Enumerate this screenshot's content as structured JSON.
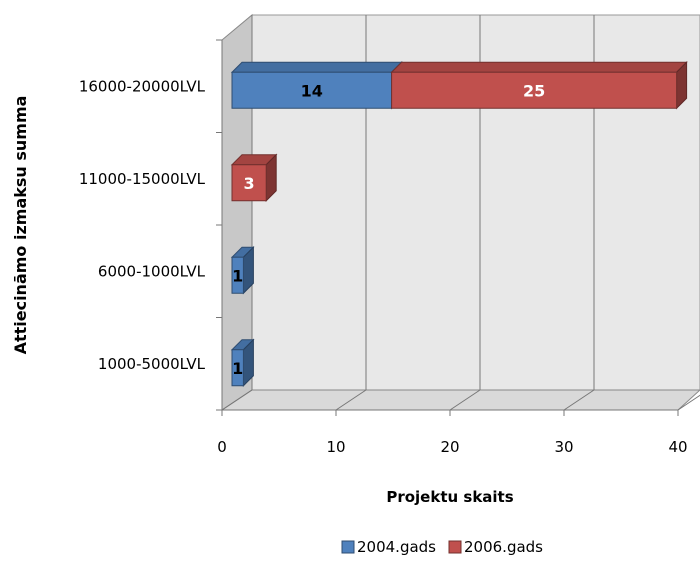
{
  "chart_data": {
    "type": "bar",
    "orientation": "horizontal",
    "style": "3d-stacked",
    "categories": [
      "16000-20000LVL",
      "11000-15000LVL",
      "6000-1000LVL",
      "1000-5000LVL"
    ],
    "series": [
      {
        "name": "2004.gads",
        "values": [
          14,
          null,
          1,
          1
        ],
        "color": "#4F81BD"
      },
      {
        "name": "2006.gads",
        "values": [
          25,
          3,
          null,
          null
        ],
        "color": "#C0504D"
      }
    ],
    "data_labels": true,
    "xlabel": "Projektu skaits",
    "ylabel": "Attiecināmo izmaksu summa",
    "xlim": [
      0,
      40
    ],
    "xticks": [
      "0",
      "10",
      "20",
      "30",
      "40"
    ],
    "grid": true,
    "legend_position": "bottom"
  }
}
